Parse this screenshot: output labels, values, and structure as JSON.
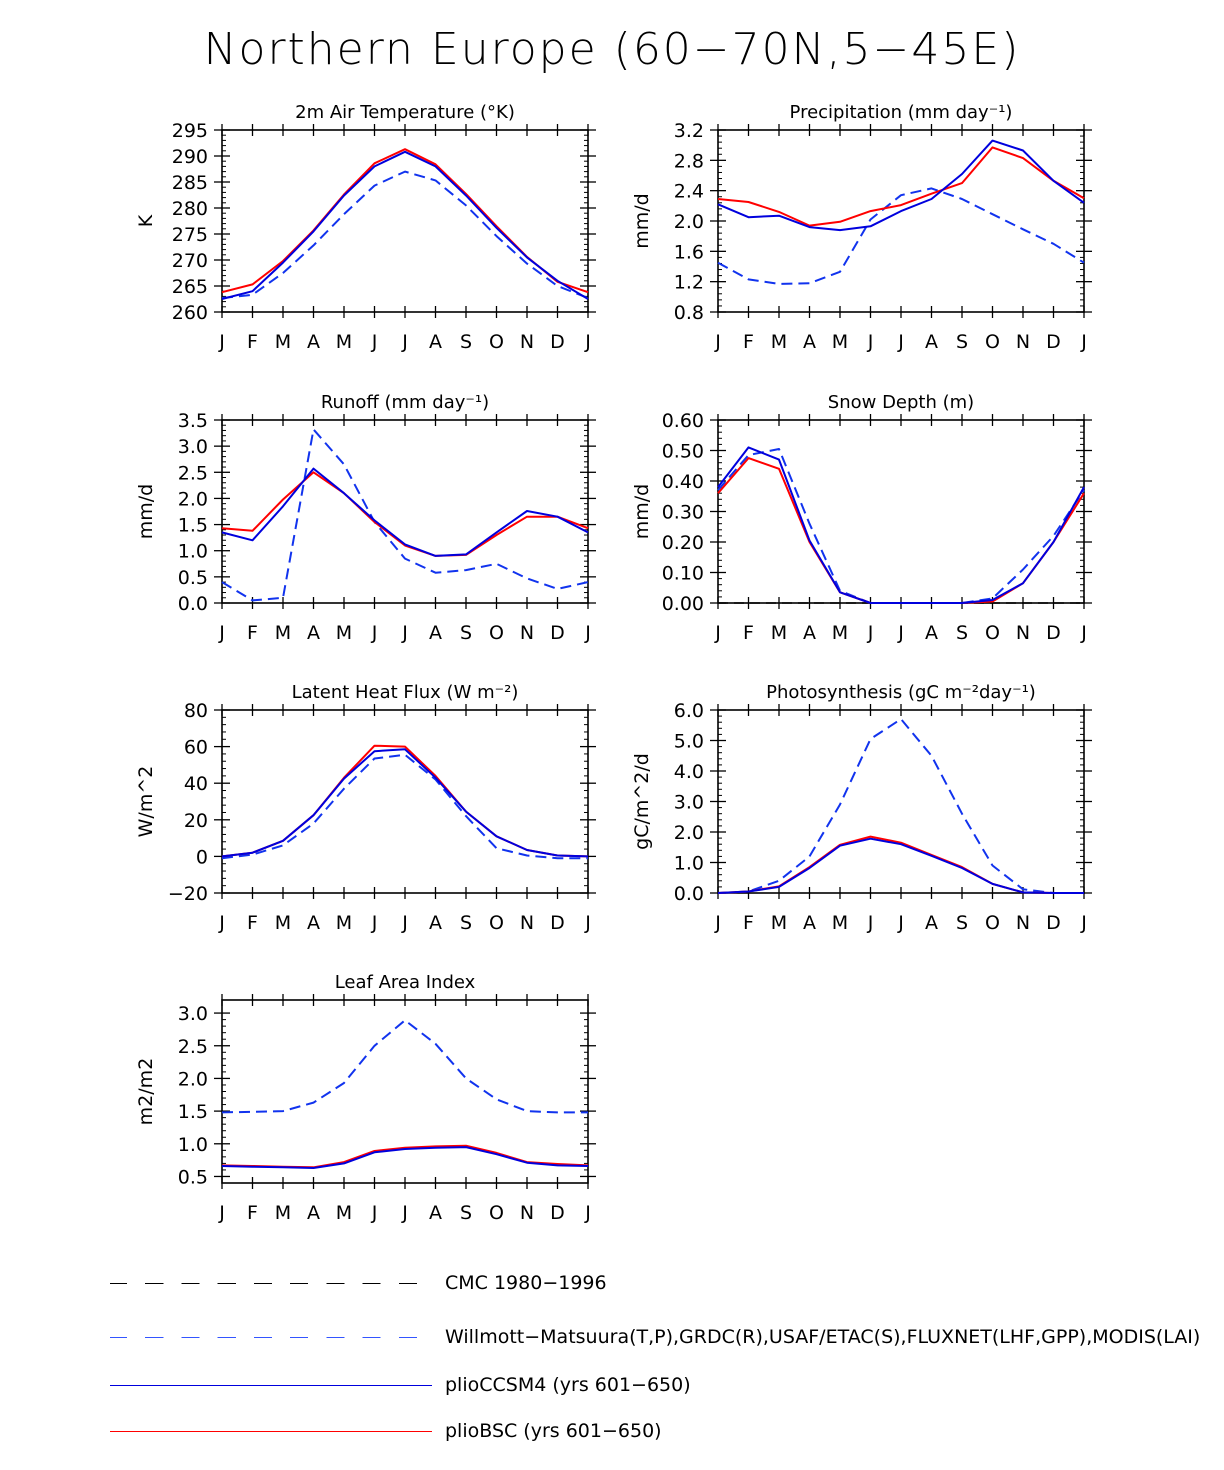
{
  "figure": {
    "title": "Northern Europe (60−70N,5−45E)"
  },
  "months": [
    "J",
    "F",
    "M",
    "A",
    "M",
    "J",
    "J",
    "A",
    "S",
    "O",
    "N",
    "D",
    "J"
  ],
  "colors": {
    "red": "#ff0000",
    "blue": "#0000dd",
    "obs_blue": "#2244ee",
    "cmc": "#000000"
  },
  "legend": [
    {
      "label": "CMC 1980−1996",
      "style": "dash-long",
      "color": "#000000"
    },
    {
      "label": "Willmott−Matsuura(T,P),GRDC(R),USAF/ETAC(S),FLUXNET(LHF,GPP),MODIS(LAI)",
      "style": "dash-long",
      "color": "#3355ff"
    },
    {
      "label": "plioCCSM4 (yrs 601−650)",
      "style": "solid",
      "color": "#0000dd"
    },
    {
      "label": "plioBSC (yrs 601−650)",
      "style": "solid",
      "color": "#ff0000"
    }
  ],
  "chart_data": [
    {
      "type": "line",
      "title": "2m Air Temperature (°K)",
      "ylabel": "K",
      "ylim": [
        260,
        295
      ],
      "yticks": [
        "260",
        "265",
        "270",
        "275",
        "280",
        "285",
        "290",
        "295"
      ],
      "series": [
        {
          "name": "plioBSC (yrs 601−650)",
          "values": [
            263.8,
            265.3,
            269.8,
            275.7,
            282.6,
            288.6,
            291.3,
            288.4,
            282.7,
            276.5,
            270.6,
            265.8,
            263.8
          ]
        },
        {
          "name": "plioCCSM4 (yrs 601−650)",
          "values": [
            262.5,
            264.0,
            269.5,
            275.5,
            282.4,
            288.0,
            290.8,
            288.0,
            282.4,
            276.2,
            270.5,
            266.0,
            262.5
          ]
        },
        {
          "name": "Willmott−Matsuura(T,P),GRDC(R),USAF/ETAC(S),FLUXNET(LHF,GPP),MODIS(LAI)",
          "values": [
            262.7,
            263.3,
            267.5,
            272.8,
            278.8,
            284.3,
            287.0,
            285.3,
            280.5,
            274.6,
            269.3,
            265.0,
            262.7
          ]
        }
      ]
    },
    {
      "type": "line",
      "title": "Precipitation (mm day⁻¹)",
      "ylabel": "mm/d",
      "ylim": [
        0.8,
        3.2
      ],
      "yticks": [
        "0.8",
        "1.2",
        "1.6",
        "2.0",
        "2.4",
        "2.8",
        "3.2"
      ],
      "series": [
        {
          "name": "plioBSC (yrs 601−650)",
          "values": [
            2.29,
            2.25,
            2.12,
            1.94,
            1.99,
            2.13,
            2.21,
            2.36,
            2.5,
            2.97,
            2.83,
            2.53,
            2.3
          ]
        },
        {
          "name": "plioCCSM4 (yrs 601−650)",
          "values": [
            2.22,
            2.05,
            2.07,
            1.92,
            1.88,
            1.93,
            2.13,
            2.29,
            2.62,
            3.06,
            2.93,
            2.53,
            2.24
          ]
        },
        {
          "name": "Willmott−Matsuura(T,P),GRDC(R),USAF/ETAC(S),FLUXNET(LHF,GPP),MODIS(LAI)",
          "values": [
            1.45,
            1.23,
            1.17,
            1.18,
            1.33,
            2.02,
            2.34,
            2.43,
            2.29,
            2.09,
            1.89,
            1.7,
            1.45
          ]
        }
      ]
    },
    {
      "type": "line",
      "title": "Runoff (mm day⁻¹)",
      "ylabel": "mm/d",
      "ylim": [
        0,
        3.5
      ],
      "yticks": [
        "0.0",
        "0.5",
        "1.0",
        "1.5",
        "2.0",
        "2.5",
        "3.0",
        "3.5"
      ],
      "series": [
        {
          "name": "plioBSC (yrs 601−650)",
          "values": [
            1.43,
            1.38,
            1.98,
            2.5,
            2.1,
            1.55,
            1.1,
            0.9,
            0.92,
            1.3,
            1.65,
            1.65,
            1.43
          ]
        },
        {
          "name": "plioCCSM4 (yrs 601−650)",
          "values": [
            1.35,
            1.2,
            1.85,
            2.57,
            2.1,
            1.58,
            1.12,
            0.9,
            0.93,
            1.35,
            1.76,
            1.65,
            1.35
          ]
        },
        {
          "name": "Willmott−Matsuura(T,P),GRDC(R),USAF/ETAC(S),FLUXNET(LHF,GPP),MODIS(LAI)",
          "values": [
            0.4,
            0.05,
            0.1,
            3.32,
            2.65,
            1.55,
            0.85,
            0.58,
            0.63,
            0.75,
            0.47,
            0.27,
            0.4
          ]
        }
      ]
    },
    {
      "type": "line",
      "title": "Snow Depth (m)",
      "ylabel": "mm/d",
      "ylim": [
        0,
        0.6
      ],
      "yticks": [
        "0.00",
        "0.10",
        "0.20",
        "0.30",
        "0.40",
        "0.50",
        "0.60"
      ],
      "series": [
        {
          "name": "plioBSC (yrs 601−650)",
          "values": [
            0.36,
            0.475,
            0.44,
            0.2,
            0.035,
            0.0,
            0.0,
            0.0,
            0.0,
            0.005,
            0.065,
            0.2,
            0.36
          ]
        },
        {
          "name": "plioCCSM4 (yrs 601−650)",
          "values": [
            0.38,
            0.51,
            0.47,
            0.205,
            0.035,
            0.0,
            0.0,
            0.0,
            0.0,
            0.01,
            0.065,
            0.2,
            0.38
          ]
        },
        {
          "name": "Willmott−Matsuura(T,P),GRDC(R),USAF/ETAC(S),FLUXNET(LHF,GPP),MODIS(LAI)",
          "values": [
            0.37,
            0.485,
            0.505,
            0.26,
            0.04,
            0.0,
            0.0,
            0.0,
            0.0,
            0.015,
            0.11,
            0.22,
            0.37
          ]
        },
        {
          "name": "CMC 1980−1996",
          "values": [
            0,
            0,
            0,
            0,
            0,
            0,
            0,
            0,
            0,
            0,
            0,
            0,
            0
          ]
        }
      ]
    },
    {
      "type": "line",
      "title": "Latent Heat Flux (W m⁻²)",
      "ylabel": "W/m^2",
      "ylim": [
        -20,
        80
      ],
      "yticks": [
        "−20",
        "0",
        "20",
        "40",
        "60",
        "80"
      ],
      "series": [
        {
          "name": "plioBSC (yrs 601−650)",
          "values": [
            0.0,
            2.0,
            8.5,
            22.5,
            43.0,
            60.5,
            60.0,
            44.0,
            24.5,
            11.0,
            3.5,
            0.5,
            0.0
          ]
        },
        {
          "name": "plioCCSM4 (yrs 601−650)",
          "values": [
            0.0,
            2.0,
            8.5,
            22.5,
            42.5,
            57.5,
            58.5,
            43.0,
            24.5,
            11.0,
            3.5,
            0.5,
            0.0
          ]
        },
        {
          "name": "Willmott−Matsuura(T,P),GRDC(R),USAF/ETAC(S),FLUXNET(LHF,GPP),MODIS(LAI)",
          "values": [
            -1.0,
            1.0,
            6.0,
            18.0,
            37.0,
            53.5,
            55.5,
            42.0,
            22.0,
            4.5,
            0.5,
            -1.0,
            -1.0
          ]
        }
      ]
    },
    {
      "type": "line",
      "title": "Photosynthesis (gC m⁻²day⁻¹)",
      "ylabel": "gC/m^2/d",
      "ylim": [
        0,
        6
      ],
      "yticks": [
        "0.0",
        "1.0",
        "2.0",
        "3.0",
        "4.0",
        "5.0",
        "6.0"
      ],
      "series": [
        {
          "name": "plioBSC (yrs 601−650)",
          "values": [
            0.0,
            0.05,
            0.22,
            0.85,
            1.58,
            1.85,
            1.65,
            1.25,
            0.85,
            0.3,
            0.02,
            0.0,
            0.0
          ]
        },
        {
          "name": "plioCCSM4 (yrs 601−650)",
          "values": [
            0.0,
            0.05,
            0.2,
            0.82,
            1.55,
            1.78,
            1.6,
            1.22,
            0.82,
            0.3,
            0.02,
            0.0,
            0.0
          ]
        },
        {
          "name": "Willmott−Matsuura(T,P),GRDC(R),USAF/ETAC(S),FLUXNET(LHF,GPP),MODIS(LAI)",
          "values": [
            0.0,
            0.05,
            0.4,
            1.2,
            2.9,
            5.05,
            5.7,
            4.5,
            2.6,
            0.9,
            0.12,
            0.0,
            0.0
          ]
        }
      ]
    },
    {
      "type": "line",
      "title": "Leaf Area Index",
      "ylabel": "m2/m2",
      "ylim": [
        0.4,
        3.2
      ],
      "yticks": [
        "0.5",
        "1.0",
        "1.5",
        "2.0",
        "2.5",
        "3.0"
      ],
      "series": [
        {
          "name": "plioBSC (yrs 601−650)",
          "values": [
            0.67,
            0.66,
            0.65,
            0.64,
            0.72,
            0.89,
            0.94,
            0.96,
            0.97,
            0.86,
            0.72,
            0.69,
            0.67
          ]
        },
        {
          "name": "plioCCSM4 (yrs 601−650)",
          "values": [
            0.66,
            0.65,
            0.64,
            0.63,
            0.7,
            0.87,
            0.92,
            0.94,
            0.95,
            0.84,
            0.71,
            0.67,
            0.66
          ]
        },
        {
          "name": "Willmott−Matsuura(T,P),GRDC(R),USAF/ETAC(S),FLUXNET(LHF,GPP),MODIS(LAI)",
          "values": [
            1.48,
            1.49,
            1.5,
            1.63,
            1.93,
            2.5,
            2.89,
            2.53,
            2.0,
            1.68,
            1.5,
            1.48,
            1.48
          ]
        }
      ]
    }
  ]
}
